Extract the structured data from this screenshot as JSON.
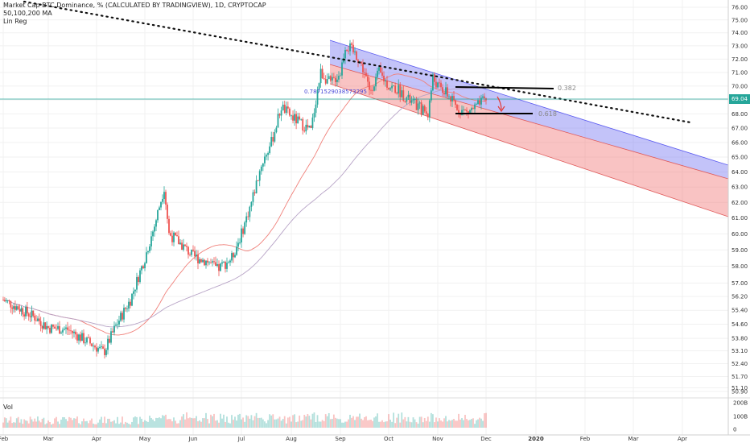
{
  "header": {
    "title": "Market Cap BTC Dominance, % (CALCULATED BY TRADINGVIEW), 1D, CRYPTOCAP",
    "ma_label": "50,100,200 MA",
    "linreg_label": "Lin Reg"
  },
  "volume_label": "Vol",
  "current_price_badge": "69.04",
  "colors": {
    "up": "#26a69a",
    "down": "#ef5350",
    "ma_fast": "#f0807a",
    "ma_slow": "#b7a3c6",
    "channel_upper": "#7b7bf2",
    "channel_lower": "#f27b7b"
  },
  "chart_data": {
    "type": "line",
    "title": "Market Cap BTC Dominance, % (CALCULATED BY TRADINGVIEW), 1D, CRYPTOCAP",
    "x_ticks": [
      "Feb",
      "Mar",
      "Apr",
      "May",
      "Jun",
      "Jul",
      "Aug",
      "Sep",
      "Oct",
      "Nov",
      "Dec",
      "2020",
      "Feb",
      "Mar",
      "Apr"
    ],
    "y_ticks": [
      50.9,
      51.1,
      51.7,
      52.4,
      53.1,
      53.8,
      54.6,
      55.4,
      56.2,
      57.0,
      58.0,
      59.0,
      60.0,
      61.0,
      62.0,
      63.0,
      64.0,
      65.0,
      66.0,
      67.0,
      68.0,
      69.0,
      70.0,
      71.0,
      72.0,
      73.0,
      74.0,
      75.0,
      76.0
    ],
    "ylim": [
      50.9,
      76.0
    ],
    "y_scale": "log",
    "series": [
      {
        "name": "",
        "values_by_month": [
          {
            "x": "Feb",
            "y": 55.6
          },
          {
            "x": "Mar",
            "y": 54.3
          },
          {
            "x": "Apr",
            "y": 53.4
          },
          {
            "x": "May",
            "y": 59.5
          },
          {
            "x": "Jun",
            "y": 58.0
          },
          {
            "x": "Jul",
            "y": 66.0
          },
          {
            "x": "Aug",
            "y": 67.8
          },
          {
            "x": "Sep",
            "y": 72.2
          },
          {
            "x": "Oct",
            "y": 69.2
          },
          {
            "x": "Nov",
            "y": 68.5
          },
          {
            "x": "Dec",
            "y": 69.04
          }
        ]
      }
    ],
    "annotations": {
      "fib_382": "0.382",
      "fib_618": "0.618",
      "linreg_coef": "0.7871529038573295"
    },
    "volume": {
      "label": "Vol",
      "ticks": [
        "200B",
        "100B",
        "0"
      ]
    },
    "current_value": 69.04,
    "grid": true
  }
}
